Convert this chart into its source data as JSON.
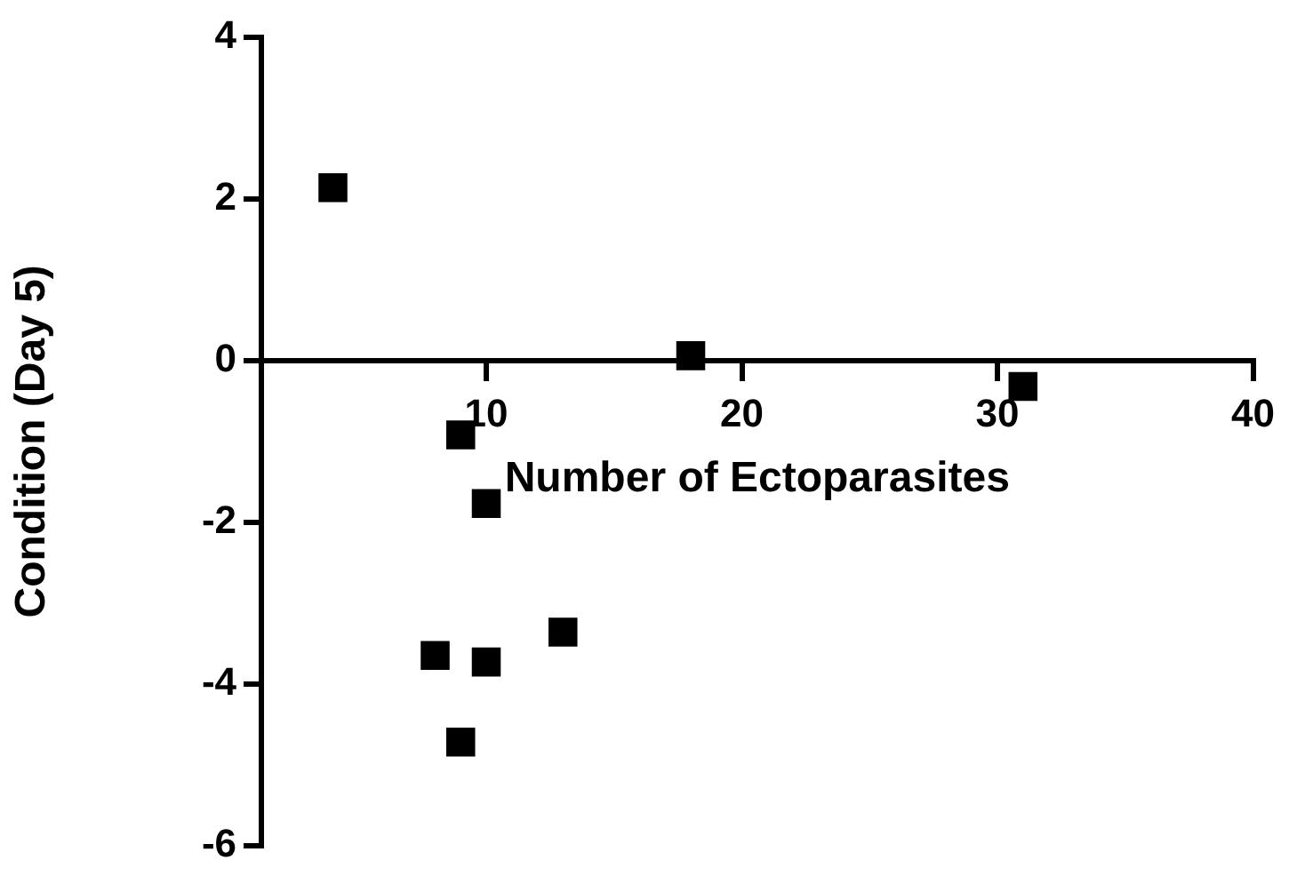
{
  "chart_data": {
    "type": "scatter",
    "xlabel": "Number of Ectoparasites",
    "ylabel": "Condition (Day 5)",
    "x": [
      4,
      9,
      18,
      31,
      10,
      8,
      10,
      13,
      9
    ],
    "values": [
      2.14,
      -0.92,
      0.06,
      -0.32,
      -1.77,
      -3.65,
      -3.73,
      -3.36,
      -4.72
    ],
    "color": "#000000",
    "marker": "square",
    "grid": false,
    "xlim": [
      1.2,
      40
    ],
    "xticks": [
      10,
      20,
      30,
      40
    ],
    "ylim": [
      -6,
      4
    ],
    "yticks": [
      4,
      2,
      0,
      -2,
      -4,
      -6
    ]
  }
}
